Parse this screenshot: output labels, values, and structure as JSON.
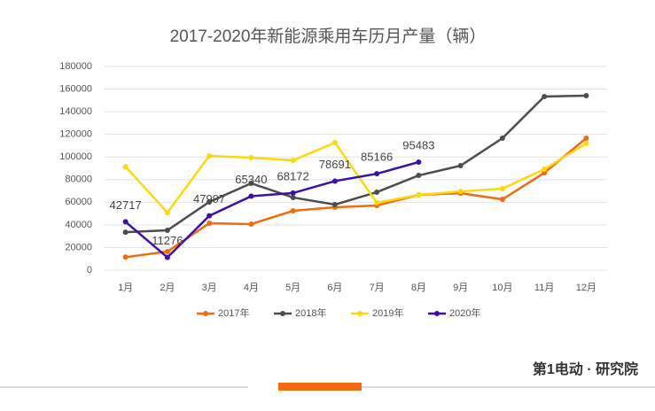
{
  "chart_data": {
    "type": "line",
    "title": "2017-2020年新能源乘用车历月产量（辆）",
    "categories": [
      "1月",
      "2月",
      "3月",
      "4月",
      "5月",
      "6月",
      "7月",
      "8月",
      "9月",
      "10月",
      "11月",
      "12月"
    ],
    "series": [
      {
        "name": "2017年",
        "color": "#f26b0f",
        "values": [
          11500,
          16400,
          41500,
          40700,
          52400,
          55600,
          57100,
          66500,
          68000,
          62600,
          86000,
          116600
        ]
      },
      {
        "name": "2018年",
        "color": "#4d4d4d",
        "values": [
          33600,
          35200,
          60300,
          76700,
          64200,
          57900,
          68900,
          83700,
          92300,
          116600,
          153400,
          154200
        ]
      },
      {
        "name": "2019年",
        "color": "#fcd80c",
        "values": [
          91500,
          50900,
          101000,
          99400,
          97000,
          112700,
          59500,
          66500,
          69600,
          72000,
          89200,
          111900
        ]
      },
      {
        "name": "2020年",
        "color": "#3d0fa8",
        "values": [
          42717,
          11276,
          47997,
          65340,
          68172,
          78691,
          85166,
          95483,
          null,
          null,
          null,
          null
        ],
        "data_labels": true
      }
    ],
    "ylim": [
      0,
      180000
    ],
    "yticks": [
      0,
      20000,
      40000,
      60000,
      80000,
      100000,
      120000,
      140000,
      160000,
      180000
    ],
    "grid": true,
    "legend": "bottom",
    "footer": "第1电动 · 研究院"
  }
}
